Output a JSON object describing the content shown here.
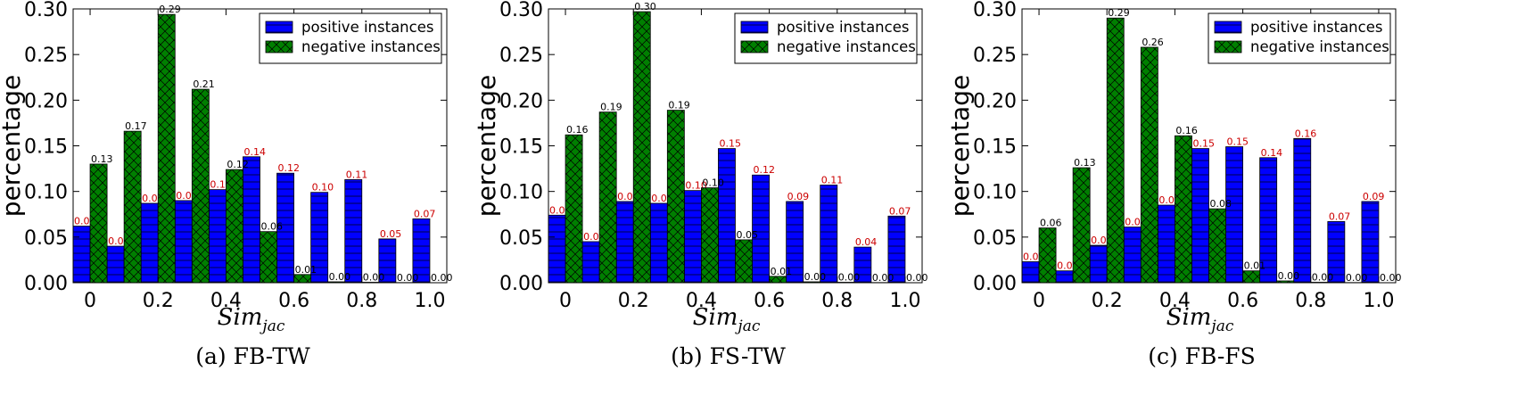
{
  "colors": {
    "positive": "#0000ff",
    "negative": "#007f00",
    "positive_label": "#cc0000",
    "negative_label": "#000000"
  },
  "chart_data": [
    {
      "type": "bar",
      "caption": "(a) FB-TW",
      "xlabel_base": "Sim",
      "xlabel_sub": "jac",
      "ylabel": "percentage",
      "xlim": [
        -0.05,
        1.05
      ],
      "ylim": [
        0,
        0.3
      ],
      "xticks": [
        "0",
        "0.2",
        "0.4",
        "0.6",
        "0.8",
        "1.0"
      ],
      "yticks": [
        "0.00",
        "0.05",
        "0.10",
        "0.15",
        "0.20",
        "0.25",
        "0.30"
      ],
      "legend_position": "top-right",
      "bin_width": 0.1,
      "series": [
        {
          "name": "positive instances",
          "values": [
            0.062,
            0.04,
            0.087,
            0.09,
            0.102,
            0.138,
            0.12,
            0.099,
            0.113,
            0.048,
            0.07
          ],
          "labels": [
            "0.06",
            "0.04",
            "0.09",
            "0.09",
            "0.10",
            "0.14",
            "0.12",
            "0.10",
            "0.11",
            "0.05",
            "0.07"
          ]
        },
        {
          "name": "negative instances",
          "values": [
            0.13,
            0.166,
            0.294,
            0.212,
            0.124,
            0.056,
            0.009,
            0.001,
            0.0005,
            0.0002,
            0.0
          ],
          "labels": [
            "0.13",
            "0.17",
            "0.29",
            "0.21",
            "0.12",
            "0.06",
            "0.01",
            "0.00",
            "0.00",
            "0.00",
            "0.00"
          ]
        }
      ]
    },
    {
      "type": "bar",
      "caption": "(b) FS-TW",
      "xlabel_base": "Sim",
      "xlabel_sub": "jac",
      "ylabel": "percentage",
      "xlim": [
        -0.05,
        1.05
      ],
      "ylim": [
        0,
        0.3
      ],
      "xticks": [
        "0",
        "0.2",
        "0.4",
        "0.6",
        "0.8",
        "1.0"
      ],
      "yticks": [
        "0.00",
        "0.05",
        "0.10",
        "0.15",
        "0.20",
        "0.25",
        "0.30"
      ],
      "legend_position": "top-right",
      "bin_width": 0.1,
      "series": [
        {
          "name": "positive instances",
          "values": [
            0.074,
            0.045,
            0.089,
            0.087,
            0.101,
            0.147,
            0.118,
            0.089,
            0.107,
            0.039,
            0.073
          ],
          "labels": [
            "0.07",
            "0.04",
            "0.09",
            "0.09",
            "0.10",
            "0.15",
            "0.12",
            "0.09",
            "0.11",
            "0.04",
            "0.07"
          ]
        },
        {
          "name": "negative instances",
          "values": [
            0.162,
            0.187,
            0.297,
            0.189,
            0.104,
            0.047,
            0.007,
            0.001,
            0.0005,
            0.0002,
            0.0
          ],
          "labels": [
            "0.16",
            "0.19",
            "0.30",
            "0.19",
            "0.10",
            "0.05",
            "0.01",
            "0.00",
            "0.00",
            "0.00",
            "0.00"
          ]
        }
      ]
    },
    {
      "type": "bar",
      "caption": "(c) FB-FS",
      "xlabel_base": "Sim",
      "xlabel_sub": "jac",
      "ylabel": "percentage",
      "xlim": [
        -0.05,
        1.05
      ],
      "ylim": [
        0,
        0.3
      ],
      "xticks": [
        "0",
        "0.2",
        "0.4",
        "0.6",
        "0.8",
        "1.0"
      ],
      "yticks": [
        "0.00",
        "0.05",
        "0.10",
        "0.15",
        "0.20",
        "0.25",
        "0.30"
      ],
      "legend_position": "top-right",
      "bin_width": 0.1,
      "series": [
        {
          "name": "positive instances",
          "values": [
            0.023,
            0.013,
            0.041,
            0.061,
            0.085,
            0.147,
            0.149,
            0.137,
            0.158,
            0.067,
            0.089
          ],
          "labels": [
            "0.02",
            "0.01",
            "0.04",
            "0.06",
            "0.09",
            "0.15",
            "0.15",
            "0.14",
            "0.16",
            "0.07",
            "0.09"
          ]
        },
        {
          "name": "negative instances",
          "values": [
            0.06,
            0.126,
            0.29,
            0.258,
            0.161,
            0.081,
            0.013,
            0.002,
            0.0005,
            0.0002,
            0.0
          ],
          "labels": [
            "0.06",
            "0.13",
            "0.29",
            "0.26",
            "0.16",
            "0.08",
            "0.01",
            "0.00",
            "0.00",
            "0.00",
            "0.00"
          ]
        }
      ]
    }
  ]
}
